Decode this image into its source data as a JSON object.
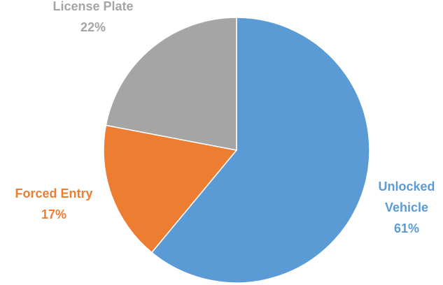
{
  "chart_data": {
    "type": "pie",
    "title": "",
    "slices": [
      {
        "label_lines": [
          "Unlocked",
          "Vehicle"
        ],
        "value": 61,
        "percent_label": "61%",
        "color": "#5B9BD5"
      },
      {
        "label_lines": [
          "Forced Entry"
        ],
        "value": 17,
        "percent_label": "17%",
        "color": "#ED7D31"
      },
      {
        "label_lines": [
          "License Plate"
        ],
        "value": 22,
        "percent_label": "22%",
        "color": "#A5A5A5"
      }
    ],
    "start_angle_deg": 0,
    "direction": "clockwise",
    "legend": "none",
    "slice_border_color": "#FFFFFF"
  }
}
